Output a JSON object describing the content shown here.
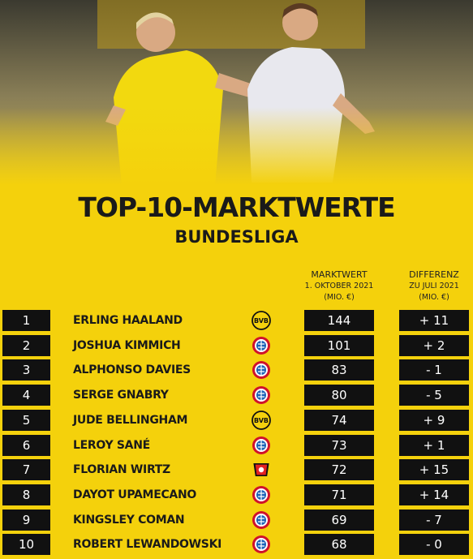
{
  "header": {
    "title": "TOP-10-MARKTWERTE",
    "subtitle": "BUNDESLIGA"
  },
  "table": {
    "columns": [
      {
        "lines": [
          "MARKTWERT",
          "1. OKTOBER 2021",
          "(MIO. €)"
        ]
      },
      {
        "lines": [
          "DIFFERENZ",
          "ZU JULI 2021",
          "(MIO. €)"
        ]
      }
    ],
    "rows": [
      [
        1,
        "ERLING HAALAND",
        144,
        "+ 11"
      ],
      [
        2,
        "JOSHUA KIMMICH",
        101,
        "+ 2"
      ],
      [
        3,
        "ALPHONSO DAVIES",
        83,
        "- 1"
      ],
      [
        4,
        "SERGE GNABRY",
        80,
        "- 5"
      ],
      [
        5,
        "JUDE BELLINGHAM",
        74,
        "+ 9"
      ],
      [
        6,
        "LEROY SANÉ",
        73,
        "+ 1"
      ],
      [
        7,
        "FLORIAN WIRTZ",
        72,
        "+ 15"
      ],
      [
        8,
        "DAYOT UPAMECANO",
        71,
        "+ 14"
      ],
      [
        9,
        "KINGSLEY COMAN",
        69,
        "- 7"
      ],
      [
        10,
        "ROBERT LEWANDOWSKI",
        68,
        "- 0"
      ]
    ]
  }
}
